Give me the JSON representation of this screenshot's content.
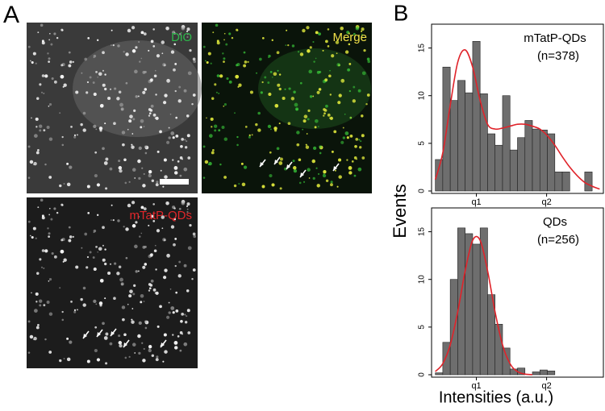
{
  "panel_a": {
    "label": "A",
    "images": [
      {
        "label": "DiO",
        "color": "#2db84a"
      },
      {
        "label": "Merge",
        "color": "#f2e24a"
      },
      {
        "label": "mTatP-QDs",
        "color": "#e2262a"
      }
    ]
  },
  "panel_b": {
    "label": "B",
    "y_label": "Events",
    "x_label": "Intensities (a.u.)"
  },
  "chart_data": [
    {
      "type": "histogram",
      "annotation": [
        "mTatP-QDs",
        "(n=378)"
      ],
      "bins": [
        0,
        1,
        2,
        3,
        4,
        5,
        6,
        7,
        8,
        9,
        10,
        11,
        12,
        13,
        14,
        15,
        16,
        17,
        18,
        19,
        20,
        21
      ],
      "values": [
        3.3,
        13,
        9.5,
        11.6,
        10.3,
        15.7,
        10.2,
        6,
        4.8,
        10,
        4.3,
        5.6,
        7.4,
        6.5,
        6.4,
        6,
        2,
        2,
        0,
        0,
        2
      ],
      "color": "#6e6e6e",
      "fit": {
        "color": "#e0232a",
        "x": [
          0,
          1,
          2,
          3,
          4,
          5,
          6,
          7,
          8,
          9,
          10,
          11,
          12,
          13,
          14,
          15,
          16,
          17,
          18,
          19,
          20,
          21,
          22
        ],
        "values": [
          1.2,
          4,
          9,
          13.5,
          14.8,
          13,
          9.5,
          7,
          6.5,
          6.6,
          6.8,
          7,
          7,
          6.8,
          6.5,
          5.8,
          4.8,
          3.6,
          2.5,
          1.6,
          0.9,
          0.5,
          0.2
        ]
      },
      "xlim": [
        -0.5,
        22.5
      ],
      "xticks": [
        {
          "value": 5.5,
          "label": "q1"
        },
        {
          "value": 14.9,
          "label": "q2"
        }
      ],
      "ylim": [
        0,
        17.5
      ],
      "yticks": [
        0,
        5,
        10,
        15
      ]
    },
    {
      "type": "histogram",
      "annotation": [
        "QDs",
        "(n=256)"
      ],
      "bins": [
        0,
        1,
        2,
        3,
        4,
        5,
        6,
        7,
        8,
        9,
        10,
        11,
        12,
        13,
        14,
        15,
        16
      ],
      "values": [
        0.2,
        3.4,
        10,
        15.4,
        14.8,
        13.7,
        15.4,
        8.4,
        5.3,
        2.8,
        0.6,
        0.7,
        0,
        0.3,
        0.5,
        0.4
      ],
      "color": "#6e6e6e",
      "fit": {
        "color": "#e0232a",
        "x": [
          0,
          1,
          2,
          3,
          4,
          5,
          6,
          7,
          8,
          9,
          10,
          11,
          12,
          13
        ],
        "values": [
          0.33,
          1.16,
          3.14,
          6.6,
          10.9,
          14.1,
          14.1,
          10.9,
          6.6,
          3.14,
          1.16,
          0.33,
          0.07,
          0.01
        ]
      },
      "xlim": [
        -0.5,
        22.5
      ],
      "xticks": [
        {
          "value": 5.5,
          "label": "q1"
        },
        {
          "value": 14.9,
          "label": "q2"
        }
      ],
      "ylim": [
        0,
        17.5
      ],
      "yticks": [
        0,
        5,
        10,
        15
      ]
    }
  ]
}
